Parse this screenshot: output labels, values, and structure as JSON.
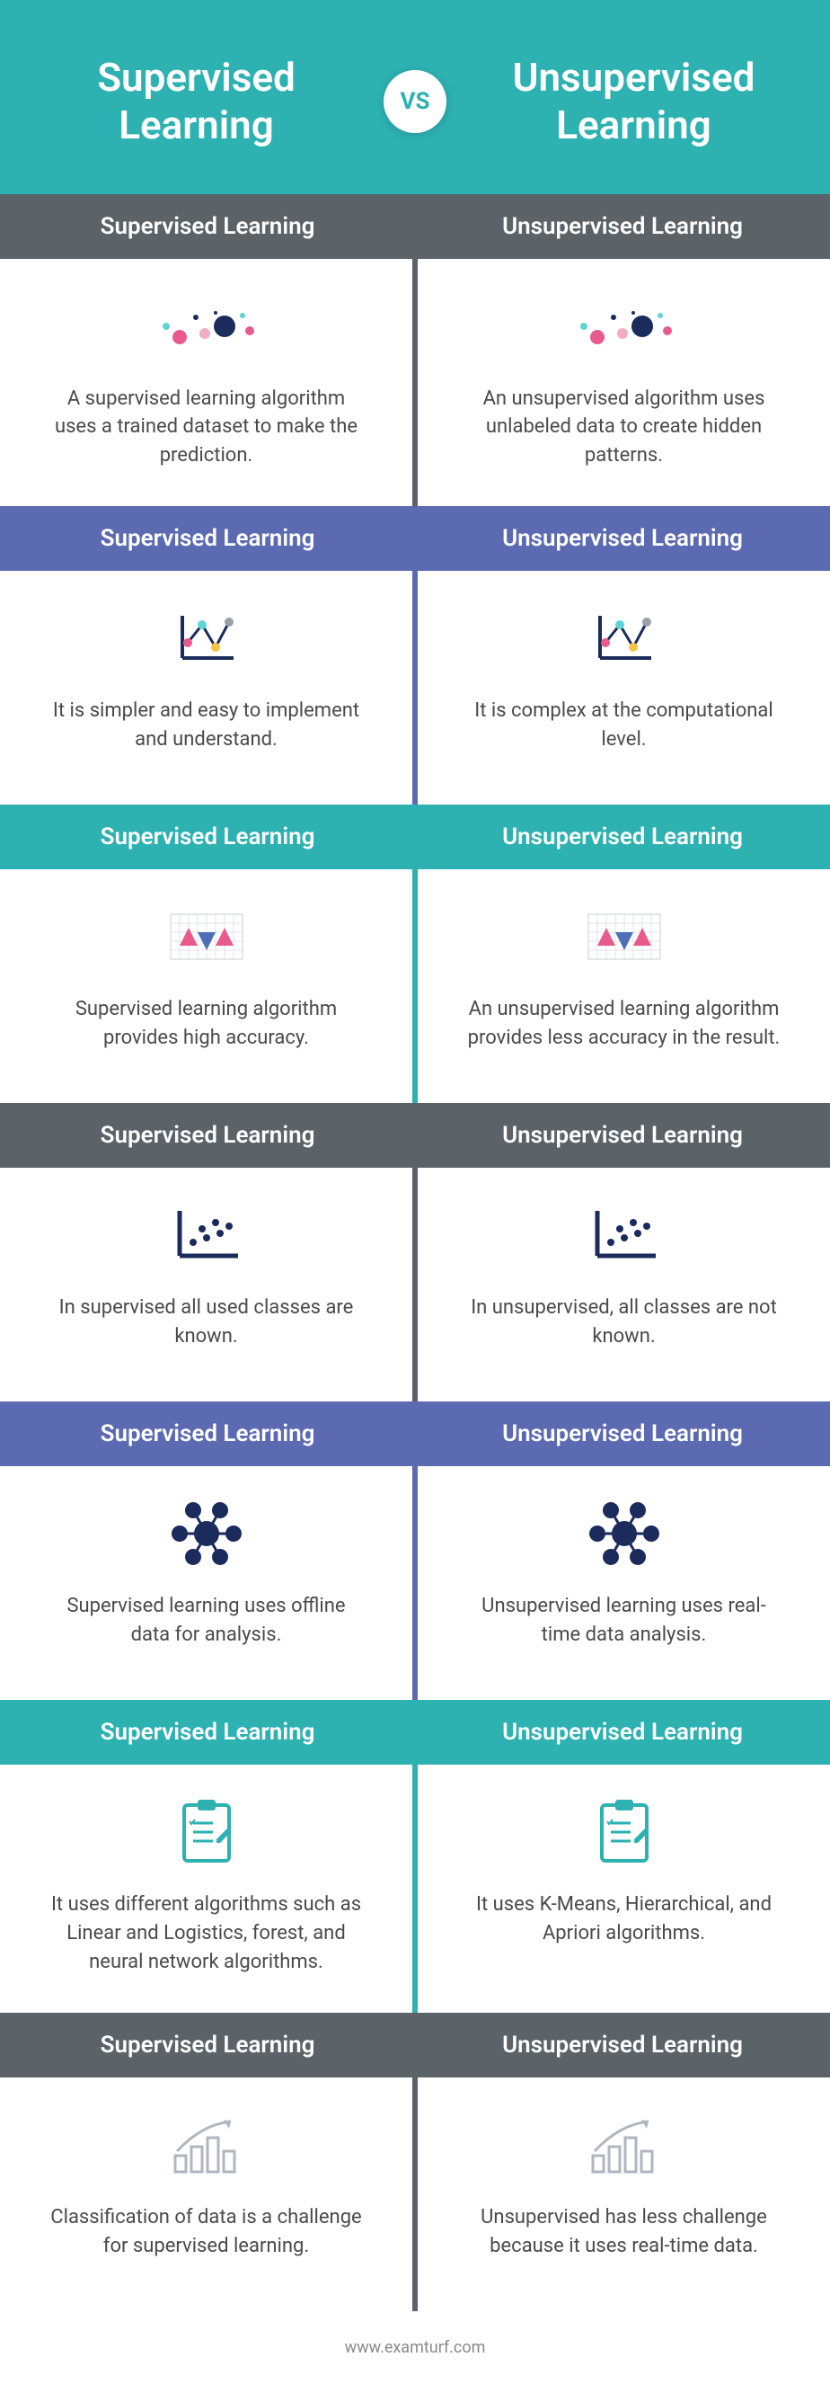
{
  "header": {
    "left": "Supervised\nLearning",
    "right": "Unsupervised\nLearning",
    "vs": "VS",
    "bg": "#2db1b1"
  },
  "labels": {
    "supervised": "Supervised Learning",
    "unsupervised": "Unsupervised Learning"
  },
  "colors": {
    "teal": "#2db1b1",
    "gray": "#5b6268",
    "blue": "#5b6ab1",
    "white": "#ffffff",
    "text": "#4a4a4a",
    "iconDark": "#1e3a5f",
    "iconTeal": "#2db1b1",
    "iconGray": "#b0b6bf",
    "pink": "#e85a8a",
    "navy": "#1a2b5c",
    "cyan": "#5fd4d4",
    "yellow": "#f5c542"
  },
  "rows": [
    {
      "headerBg": "#5b6268",
      "textColor": "#ffffff",
      "dividerColor": "#5b6268",
      "icon": "dots",
      "left": "A supervised learning algorithm uses a trained dataset to make the prediction.",
      "right": "An unsupervised algorithm uses unlabeled data to create hidden patterns."
    },
    {
      "headerBg": "#5b6ab1",
      "textColor": "#ffffff",
      "dividerColor": "#5b6ab1",
      "icon": "linechart",
      "left": "It is simpler and easy to implement and understand.",
      "right": "It is complex at the computational level."
    },
    {
      "headerBg": "#2db1b1",
      "textColor": "#ffffff",
      "dividerColor": "#2db1b1",
      "icon": "gridchart",
      "left": "Supervised learning algorithm provides high accuracy.",
      "right": "An unsupervised learning algorithm provides less accuracy in the result."
    },
    {
      "headerBg": "#5b6268",
      "textColor": "#ffffff",
      "dividerColor": "#5b6268",
      "icon": "scatter",
      "left": "In supervised all used classes are known.",
      "right": "In unsupervised, all classes are not known."
    },
    {
      "headerBg": "#5b6ab1",
      "textColor": "#ffffff",
      "dividerColor": "#5b6ab1",
      "icon": "cluster",
      "left": "Supervised learning uses offline data for analysis.",
      "right": "Unsupervised learning uses real-time data analysis."
    },
    {
      "headerBg": "#2db1b1",
      "textColor": "#ffffff",
      "dividerColor": "#2db1b1",
      "icon": "clipboard",
      "left": "It uses different algorithms such as Linear and Logistics, forest, and neural network algorithms.",
      "right": "It uses K-Means, Hierarchical, and Apriori algorithms."
    },
    {
      "headerBg": "#5b6268",
      "textColor": "#ffffff",
      "dividerColor": "#5b6268",
      "icon": "growth",
      "left": "Classification of data is a challenge for supervised learning.",
      "right": "Unsupervised has less challenge because it uses real-time data."
    }
  ],
  "footer": "www.examturf.com"
}
